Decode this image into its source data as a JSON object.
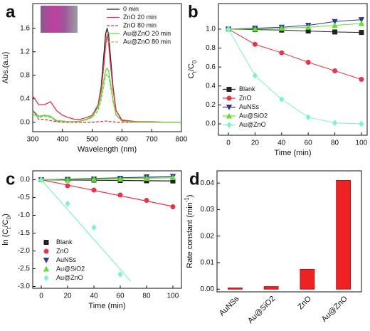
{
  "chart_data": [
    {
      "type": "line",
      "label": "a",
      "xlabel": "Wavelength (nm)",
      "ylabel": "Abs.(a.u)",
      "x": [
        300,
        320,
        340,
        360,
        380,
        400,
        420,
        440,
        460,
        480,
        500,
        520,
        530,
        540,
        545,
        550,
        555,
        560,
        570,
        580,
        600,
        650,
        700,
        750,
        800
      ],
      "xlim": [
        300,
        800
      ],
      "xticks": [
        300,
        400,
        500,
        600,
        700,
        800
      ],
      "ylim": [
        -0.16,
        2.02
      ],
      "yticks": [
        {
          "value": 0,
          "label": "0.0"
        },
        0.4,
        0.8,
        1.2,
        1.6
      ],
      "legend": "upper right",
      "series": [
        {
          "name": "0 min",
          "color": "#222222",
          "dash": false,
          "values": [
            0.2,
            0.1,
            0.12,
            0.1,
            0.02,
            0.02,
            0.01,
            0.01,
            0.02,
            0.05,
            0.1,
            0.3,
            0.6,
            1.2,
            1.5,
            1.6,
            1.5,
            1.2,
            0.6,
            0.2,
            0.03,
            0,
            0,
            0,
            0
          ]
        },
        {
          "name": "ZnO 20 min",
          "color": "#e8344a",
          "dash": false,
          "values": [
            0.45,
            0.3,
            0.3,
            0.35,
            0.2,
            0.12,
            0.08,
            0.05,
            0.05,
            0.08,
            0.12,
            0.3,
            0.55,
            1.0,
            1.3,
            1.5,
            1.35,
            1.05,
            0.55,
            0.2,
            0.04,
            0.01,
            0.01,
            0,
            0
          ]
        },
        {
          "name": "ZnO 80 min",
          "color": "#e8344a",
          "dash": true,
          "values": [
            0.2,
            0.05,
            0.05,
            0.03,
            0.01,
            0,
            0,
            0,
            0,
            0,
            0,
            0.01,
            0.01,
            0.02,
            0.02,
            0.02,
            0.02,
            0.01,
            0.01,
            0,
            0,
            0,
            0,
            0,
            0
          ]
        },
        {
          "name": "Au@ZnO 20 min",
          "color": "#55dd44",
          "dash": false,
          "values": [
            0.18,
            0.1,
            0.12,
            0.1,
            0.03,
            0.02,
            0.01,
            0.01,
            0.02,
            0.05,
            0.1,
            0.25,
            0.45,
            0.75,
            0.88,
            0.92,
            0.88,
            0.72,
            0.38,
            0.13,
            0.02,
            0,
            0,
            0,
            0
          ]
        },
        {
          "name": "Au@ZnO 80 min",
          "color": "#88cc44",
          "dash": true,
          "values": [
            0.15,
            0.08,
            0.1,
            0.08,
            0.02,
            0.01,
            0.01,
            0.01,
            0.02,
            0.04,
            0.08,
            0.2,
            0.38,
            0.65,
            0.78,
            0.82,
            0.78,
            0.65,
            0.35,
            0.12,
            0.02,
            0,
            0,
            0,
            0
          ]
        }
      ]
    },
    {
      "type": "line",
      "label": "b",
      "xlabel": "Time (min)",
      "ylabel_parts": [
        "C",
        "t",
        "/C",
        "0"
      ],
      "ylabel_script": "sub",
      "x": [
        0,
        20,
        40,
        60,
        80,
        100
      ],
      "xlim": [
        -7.5,
        104.3
      ],
      "xticks": [
        0,
        20,
        40,
        60,
        80,
        100
      ],
      "ylim": [
        -0.12,
        1.27
      ],
      "yticks": [
        {
          "value": 0,
          "label": "0.0"
        },
        0.2,
        0.4,
        0.6,
        0.8,
        {
          "value": 1,
          "label": "1.0"
        }
      ],
      "legend": "lower left",
      "markers": true,
      "series": [
        {
          "name": "Blank",
          "color": "#222222",
          "marker": "square",
          "values": [
            1.0,
            0.995,
            0.99,
            0.98,
            0.97,
            0.965
          ]
        },
        {
          "name": "ZnO",
          "color": "#e8344a",
          "marker": "circle",
          "values": [
            1.0,
            0.84,
            0.75,
            0.65,
            0.56,
            0.47
          ]
        },
        {
          "name": "AuNSs",
          "color": "#2e3a8c",
          "marker": "triangle-down",
          "values": [
            1.0,
            1.01,
            1.02,
            1.04,
            1.08,
            1.1
          ]
        },
        {
          "name": "Au@SiO2",
          "color": "#66dd33",
          "marker": "triangle-up",
          "values": [
            1.0,
            1.0,
            1.01,
            1.02,
            1.04,
            1.06
          ]
        },
        {
          "name": "Au@ZnO",
          "color": "#7ff0d0",
          "marker": "diamond",
          "values": [
            1.0,
            0.51,
            0.26,
            0.07,
            0.01,
            0.0
          ]
        }
      ]
    },
    {
      "type": "scatter",
      "label": "c",
      "xlabel": "Time (min)",
      "ylabel_parts": [
        "ln (C",
        "t",
        "/C",
        "0",
        ")"
      ],
      "ylabel_script": "sub",
      "x": [
        0,
        20,
        40,
        60,
        80,
        100
      ],
      "xlim": [
        -6.5,
        106.5
      ],
      "xticks": [
        0,
        20,
        40,
        60,
        80,
        100
      ],
      "ylim": [
        -3.05,
        0.25
      ],
      "yticks": [
        {
          "value": 0,
          "label": "0.0"
        },
        -0.5,
        {
          "value": -1,
          "label": "-1.0"
        },
        -1.5,
        {
          "value": -2,
          "label": "-2.0"
        },
        -2.5,
        {
          "value": -3,
          "label": "-3.0"
        }
      ],
      "legend": "center left",
      "series": [
        {
          "name": "Blank",
          "color": "#222222",
          "marker": "square",
          "values": [
            0,
            -0.005,
            -0.01,
            -0.02,
            -0.03,
            -0.035
          ],
          "fit_x": [
            0,
            100
          ],
          "fit": [
            0,
            -0.035
          ]
        },
        {
          "name": "ZnO",
          "color": "#e8344a",
          "marker": "circle",
          "values": [
            0,
            -0.17,
            -0.29,
            -0.43,
            -0.58,
            -0.76
          ],
          "fit_x": [
            0,
            100
          ],
          "fit": [
            0,
            -0.75
          ]
        },
        {
          "name": "AuNSs",
          "color": "#2e3a8c",
          "marker": "triangle-down",
          "values": [
            0,
            0.01,
            0.02,
            0.04,
            0.08,
            0.095
          ],
          "fit_x": [
            0,
            100
          ],
          "fit": [
            0,
            0.09
          ]
        },
        {
          "name": "Au@SiO2",
          "color": "#66dd33",
          "marker": "triangle-up",
          "values": [
            0,
            0,
            0.01,
            0.02,
            0.04,
            0.06
          ],
          "fit_x": [
            0,
            100
          ],
          "fit": [
            0,
            0.055
          ]
        },
        {
          "name": "Au@ZnO",
          "color": "#7ff0d0",
          "marker": "diamond",
          "values": [
            0,
            -0.67,
            -1.34,
            -2.66,
            null,
            null
          ],
          "fit_x": [
            0,
            68
          ],
          "fit": [
            0,
            -2.85
          ]
        }
      ]
    },
    {
      "type": "bar",
      "label": "d",
      "ylabel_parts": [
        "Rate constant (min",
        "-1",
        ")"
      ],
      "ylabel_script": "super",
      "categories": [
        "AuNSs",
        "Au@SiO2",
        "ZnO",
        "Au@ZnO"
      ],
      "values": [
        0.0005,
        0.001,
        0.0075,
        0.041
      ],
      "color": "#ee2222",
      "ylim": [
        -0.001,
        0.0446
      ],
      "yticks": [
        {
          "value": 0,
          "label": "0.00"
        },
        0.01,
        0.02,
        0.03,
        0.04
      ]
    }
  ]
}
